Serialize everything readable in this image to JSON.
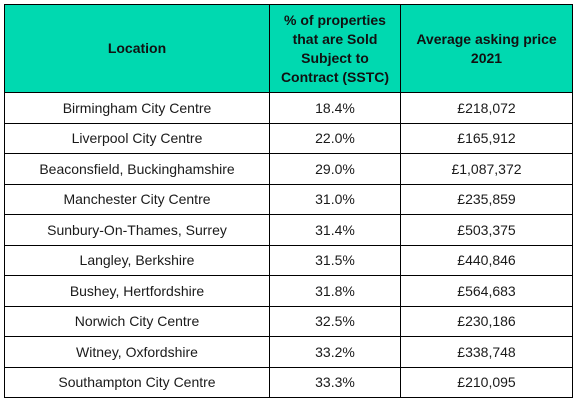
{
  "table": {
    "header_color": "#00d9b0",
    "headers": [
      "Location",
      "% of properties that are Sold Subject to Contract (SSTC)",
      "Average asking price 2021"
    ],
    "rows": [
      {
        "location": "Birmingham City Centre",
        "sstc": "18.4%",
        "price": "£218,072"
      },
      {
        "location": "Liverpool City Centre",
        "sstc": "22.0%",
        "price": "£165,912"
      },
      {
        "location": "Beaconsfield, Buckinghamshire",
        "sstc": "29.0%",
        "price": "£1,087,372"
      },
      {
        "location": "Manchester City Centre",
        "sstc": "31.0%",
        "price": "£235,859"
      },
      {
        "location": "Sunbury-On-Thames, Surrey",
        "sstc": "31.4%",
        "price": "£503,375"
      },
      {
        "location": "Langley, Berkshire",
        "sstc": "31.5%",
        "price": "£440,846"
      },
      {
        "location": "Bushey, Hertfordshire",
        "sstc": "31.8%",
        "price": "£564,683"
      },
      {
        "location": "Norwich City Centre",
        "sstc": "32.5%",
        "price": "£230,186"
      },
      {
        "location": "Witney, Oxfordshire",
        "sstc": "33.2%",
        "price": "£338,748"
      },
      {
        "location": "Southampton City Centre",
        "sstc": "33.3%",
        "price": "£210,095"
      }
    ]
  }
}
